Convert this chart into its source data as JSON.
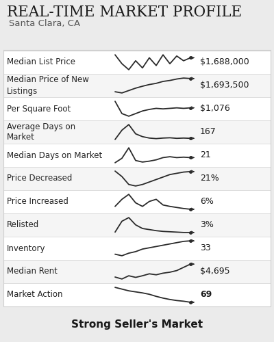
{
  "title": "Real-Time Market Profile",
  "subtitle": "Santa Clara, CA",
  "footer": "Strong Seller's Market",
  "bg_color": "#ebebeb",
  "row_bg": "#ffffff",
  "alt_row_bg": "#f5f5f5",
  "border_color": "#d0d0d0",
  "rows": [
    {
      "label": "Median List Price",
      "value": "$1,688,000",
      "bold": false,
      "spark": [
        0.6,
        0.45,
        0.35,
        0.5,
        0.38,
        0.55,
        0.42,
        0.6,
        0.45,
        0.58,
        0.5,
        0.55
      ]
    },
    {
      "label": "Median Price of New\nListings",
      "value": "$1,693,500",
      "bold": false,
      "spark": [
        0.15,
        0.1,
        0.2,
        0.3,
        0.38,
        0.45,
        0.5,
        0.58,
        0.62,
        0.68,
        0.72,
        0.7
      ]
    },
    {
      "label": "Per Square Foot",
      "value": "$1,076",
      "bold": false,
      "spark": [
        0.75,
        0.28,
        0.18,
        0.28,
        0.38,
        0.44,
        0.48,
        0.46,
        0.48,
        0.5,
        0.48,
        0.5
      ]
    },
    {
      "label": "Average Days on\nMarket",
      "value": "167",
      "bold": false,
      "spark": [
        0.25,
        0.58,
        0.78,
        0.45,
        0.35,
        0.3,
        0.28,
        0.3,
        0.31,
        0.29,
        0.3,
        0.29
      ]
    },
    {
      "label": "Median Days on Market",
      "value": "21",
      "bold": false,
      "spark": [
        0.25,
        0.45,
        0.92,
        0.35,
        0.28,
        0.32,
        0.38,
        0.48,
        0.52,
        0.48,
        0.5,
        0.48
      ]
    },
    {
      "label": "Price Decreased",
      "value": "21%",
      "bold": false,
      "spark": [
        0.72,
        0.5,
        0.18,
        0.12,
        0.18,
        0.28,
        0.38,
        0.48,
        0.58,
        0.63,
        0.68,
        0.7
      ]
    },
    {
      "label": "Price Increased",
      "value": "6%",
      "bold": false,
      "spark": [
        0.38,
        0.58,
        0.72,
        0.48,
        0.38,
        0.52,
        0.58,
        0.42,
        0.38,
        0.35,
        0.32,
        0.3
      ]
    },
    {
      "label": "Relisted",
      "value": "3%",
      "bold": false,
      "spark": [
        0.28,
        0.58,
        0.68,
        0.48,
        0.38,
        0.35,
        0.32,
        0.3,
        0.29,
        0.28,
        0.27,
        0.27
      ]
    },
    {
      "label": "Inventory",
      "value": "33",
      "bold": false,
      "spark": [
        0.18,
        0.12,
        0.22,
        0.28,
        0.38,
        0.43,
        0.48,
        0.53,
        0.58,
        0.63,
        0.68,
        0.7
      ]
    },
    {
      "label": "Median Rent",
      "value": "$4,695",
      "bold": false,
      "spark": [
        0.28,
        0.22,
        0.32,
        0.27,
        0.32,
        0.38,
        0.35,
        0.4,
        0.43,
        0.48,
        0.58,
        0.68
      ]
    },
    {
      "label": "Market Action",
      "value": "69",
      "bold": true,
      "spark": [
        0.78,
        0.73,
        0.68,
        0.65,
        0.62,
        0.58,
        0.52,
        0.47,
        0.43,
        0.4,
        0.38,
        0.35
      ]
    }
  ]
}
